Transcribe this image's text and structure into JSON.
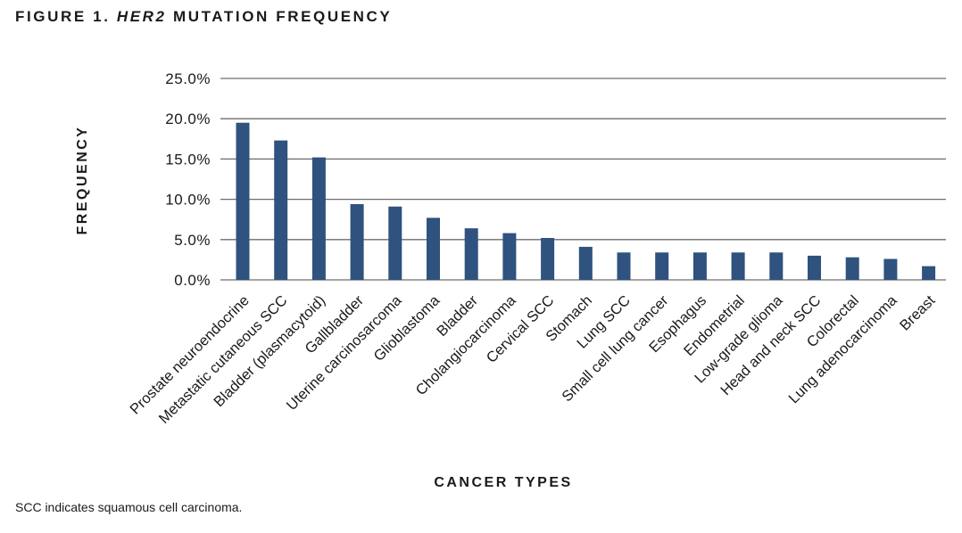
{
  "figure": {
    "label": "FIGURE 1.",
    "gene": "HER2",
    "title_rest": "MUTATION FREQUENCY",
    "footnote": "SCC indicates squamous cell carcinoma."
  },
  "chart_data": {
    "type": "bar",
    "title": "FIGURE 1. HER2 MUTATION FREQUENCY",
    "xlabel": "CANCER TYPES",
    "ylabel": "FREQUENCY",
    "ylim": [
      0,
      25
    ],
    "yticks": [
      "0.0%",
      "5.0%",
      "10.0%",
      "15.0%",
      "20.0%",
      "25.0%"
    ],
    "grid": true,
    "legend": "none",
    "bar_color": "#2f527e",
    "categories": [
      "Prostate neuroendocrine",
      "Metastatic cutaneous SCC",
      "Bladder (plasmacytoid)",
      "Gallbladder",
      "Uterine carcinosarcoma",
      "Glioblastoma",
      "Bladder",
      "Cholangiocarcinoma",
      "Cervical SCC",
      "Stomach",
      "Lung SCC",
      "Small cell lung cancer",
      "Esophagus",
      "Endometrial",
      "Low-grade glioma",
      "Head and neck SCC",
      "Colorectal",
      "Lung adenocarcinoma",
      "Breast"
    ],
    "values": [
      19.5,
      17.3,
      15.2,
      9.4,
      9.1,
      7.7,
      6.4,
      5.8,
      5.2,
      4.1,
      3.4,
      3.4,
      3.4,
      3.4,
      3.4,
      3.0,
      2.8,
      2.6,
      1.7
    ]
  }
}
